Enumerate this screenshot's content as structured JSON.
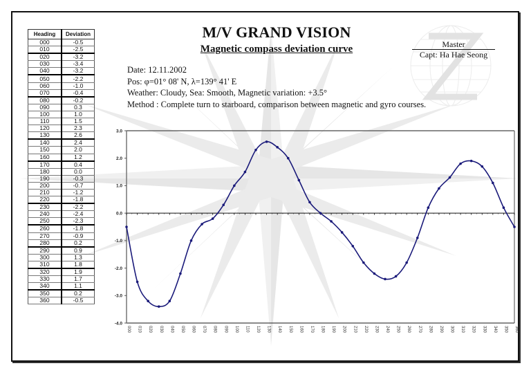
{
  "header": {
    "title": "M/V GRAND VISION",
    "subtitle": "Magnetic compass deviation curve",
    "master_label": "Master",
    "master_name": "Capt: Ha Hae Seong"
  },
  "info": {
    "date": "Date: 12.11.2002",
    "position": "Pos: φ=01° 08' N, λ=139° 41' E",
    "weather": "Weather: Cloudy, Sea: Smooth, Magnetic variation: +3.5°",
    "method": "Method : Complete turn to starboard, comparison between magnetic and gyro courses."
  },
  "table": {
    "columns": [
      "Heading",
      "Deviation"
    ],
    "rows": [
      [
        "000",
        "-0.5"
      ],
      [
        "010",
        "-2.5"
      ],
      [
        "020",
        "-3.2"
      ],
      [
        "030",
        "-3.4"
      ],
      [
        "040",
        "-3.2"
      ],
      [
        "050",
        "-2.2"
      ],
      [
        "060",
        "-1.0"
      ],
      [
        "070",
        "-0.4"
      ],
      [
        "080",
        "-0.2"
      ],
      [
        "090",
        "0.3"
      ],
      [
        "100",
        "1.0"
      ],
      [
        "110",
        "1.5"
      ],
      [
        "120",
        "2.3"
      ],
      [
        "130",
        "2.6"
      ],
      [
        "140",
        "2.4"
      ],
      [
        "150",
        "2.0"
      ],
      [
        "160",
        "1.2"
      ],
      [
        "170",
        "0.4"
      ],
      [
        "180",
        "0.0"
      ],
      [
        "190",
        "-0.3"
      ],
      [
        "200",
        "-0.7"
      ],
      [
        "210",
        "-1.2"
      ],
      [
        "220",
        "-1.8"
      ],
      [
        "230",
        "-2.2"
      ],
      [
        "240",
        "-2.4"
      ],
      [
        "250",
        "-2.3"
      ],
      [
        "260",
        "-1.8"
      ],
      [
        "270",
        "-0.9"
      ],
      [
        "280",
        "0.2"
      ],
      [
        "290",
        "0.9"
      ],
      [
        "300",
        "1.3"
      ],
      [
        "310",
        "1.8"
      ],
      [
        "320",
        "1.9"
      ],
      [
        "330",
        "1.7"
      ],
      [
        "340",
        "1.1"
      ],
      [
        "350",
        "0.2"
      ],
      [
        "360",
        "-0.5"
      ]
    ]
  },
  "colors": {
    "curve": "#1a1a7a",
    "watermark": "#e6e6e6",
    "axis": "#555555"
  },
  "chart_data": {
    "type": "line",
    "title": "Magnetic compass deviation curve",
    "xlabel": "Heading",
    "ylabel": "Deviation",
    "categories": [
      "000",
      "010",
      "020",
      "030",
      "040",
      "050",
      "060",
      "070",
      "080",
      "090",
      "100",
      "110",
      "120",
      "130",
      "140",
      "150",
      "160",
      "170",
      "180",
      "190",
      "200",
      "210",
      "220",
      "230",
      "240",
      "250",
      "260",
      "270",
      "280",
      "290",
      "300",
      "310",
      "320",
      "330",
      "340",
      "350",
      "360"
    ],
    "series": [
      {
        "name": "Deviation",
        "values": [
          -0.5,
          -2.5,
          -3.2,
          -3.4,
          -3.2,
          -2.2,
          -1.0,
          -0.4,
          -0.2,
          0.3,
          1.0,
          1.5,
          2.3,
          2.6,
          2.4,
          2.0,
          1.2,
          0.4,
          0.0,
          -0.3,
          -0.7,
          -1.2,
          -1.8,
          -2.2,
          -2.4,
          -2.3,
          -1.8,
          -0.9,
          0.2,
          0.9,
          1.3,
          1.8,
          1.9,
          1.7,
          1.1,
          0.2,
          -0.5
        ]
      }
    ],
    "yticks": [
      "3.0",
      "2.0",
      "1.0",
      "0.0",
      "-1.0",
      "-2.0",
      "-3.0",
      "-4.0"
    ],
    "ylim": [
      -4.0,
      3.0
    ],
    "grid": false,
    "legend": "none",
    "smooth": true,
    "markers": true
  }
}
